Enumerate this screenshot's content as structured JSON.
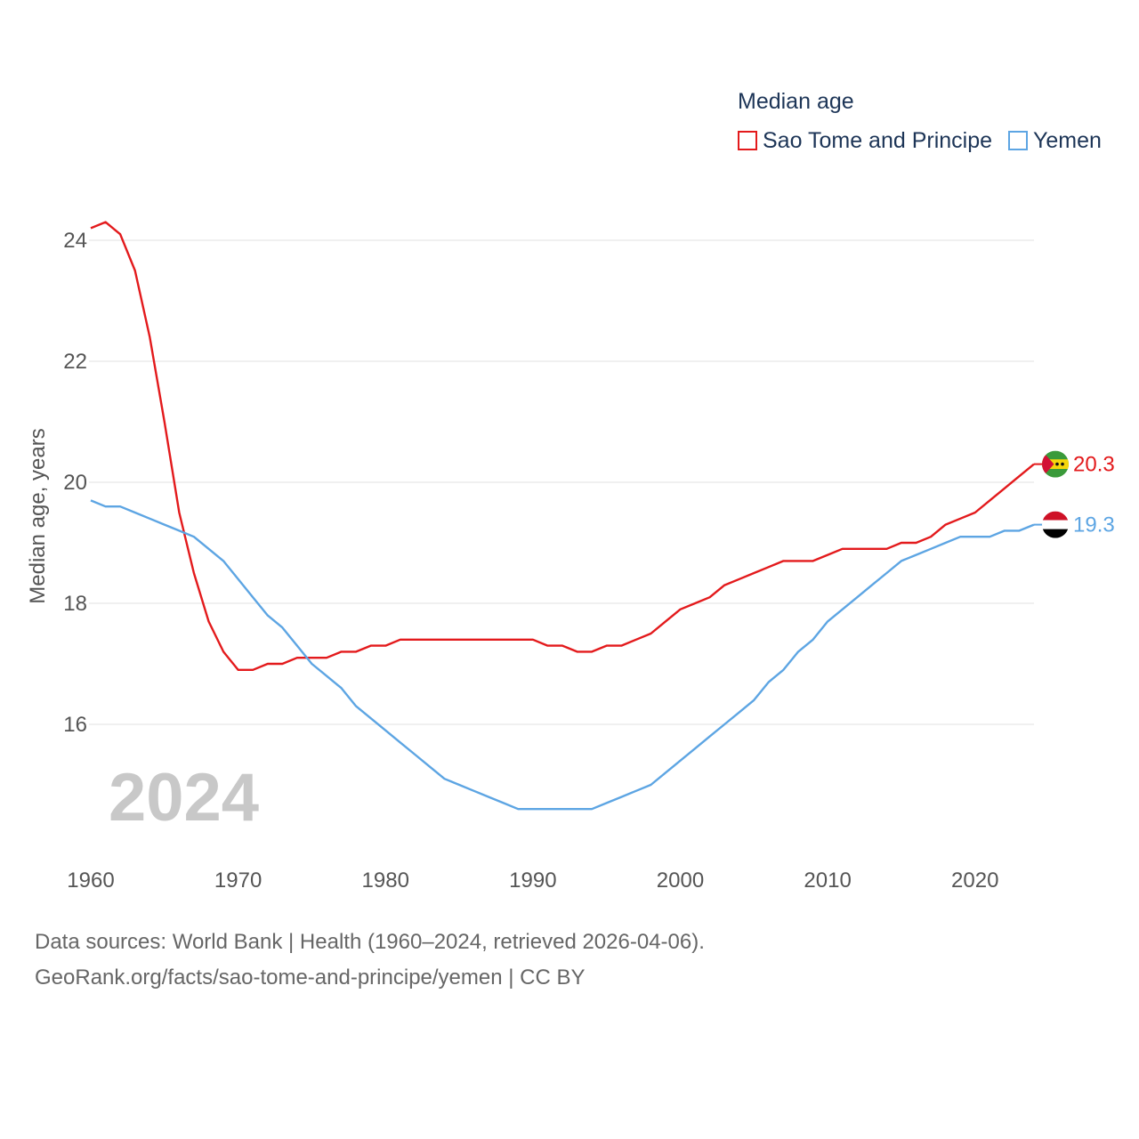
{
  "legend": {
    "title": "Median age",
    "items": [
      {
        "name": "Sao Tome and Principe",
        "color": "#e31a1c"
      },
      {
        "name": "Yemen",
        "color": "#5da5e3"
      }
    ]
  },
  "footer": {
    "line1": "Data sources: World Bank | Health (1960–2024, retrieved 2026-04-06).",
    "line2": "GeoRank.org/facts/sao-tome-and-principe/yemen | CC BY"
  },
  "chart_data": {
    "type": "line",
    "title": "Median age",
    "xlabel": "",
    "ylabel": "Median age, years",
    "year_label": "2024",
    "xlim": [
      1960,
      2024
    ],
    "ylim": [
      14,
      25
    ],
    "x_ticks": [
      1960,
      1970,
      1980,
      1990,
      2000,
      2010,
      2020
    ],
    "y_ticks": [
      16,
      18,
      20,
      22,
      24
    ],
    "grid": true,
    "legend_position": "top-right",
    "x": [
      1960,
      1961,
      1962,
      1963,
      1964,
      1965,
      1966,
      1967,
      1968,
      1969,
      1970,
      1971,
      1972,
      1973,
      1974,
      1975,
      1976,
      1977,
      1978,
      1979,
      1980,
      1981,
      1982,
      1983,
      1984,
      1985,
      1986,
      1987,
      1988,
      1989,
      1990,
      1991,
      1992,
      1993,
      1994,
      1995,
      1996,
      1997,
      1998,
      1999,
      2000,
      2001,
      2002,
      2003,
      2004,
      2005,
      2006,
      2007,
      2008,
      2009,
      2010,
      2011,
      2012,
      2013,
      2014,
      2015,
      2016,
      2017,
      2018,
      2019,
      2020,
      2021,
      2022,
      2023,
      2024
    ],
    "series": [
      {
        "name": "Sao Tome and Principe",
        "color": "#e31a1c",
        "end_label": "20.3",
        "values": [
          24.2,
          24.3,
          24.1,
          23.5,
          22.4,
          21.0,
          19.5,
          18.5,
          17.7,
          17.2,
          16.9,
          16.9,
          17.0,
          17.0,
          17.1,
          17.1,
          17.1,
          17.2,
          17.2,
          17.3,
          17.3,
          17.4,
          17.4,
          17.4,
          17.4,
          17.4,
          17.4,
          17.4,
          17.4,
          17.4,
          17.4,
          17.3,
          17.3,
          17.2,
          17.2,
          17.3,
          17.3,
          17.4,
          17.5,
          17.7,
          17.9,
          18.0,
          18.1,
          18.3,
          18.4,
          18.5,
          18.6,
          18.7,
          18.7,
          18.7,
          18.8,
          18.9,
          18.9,
          18.9,
          18.9,
          19.0,
          19.0,
          19.1,
          19.3,
          19.4,
          19.5,
          19.7,
          19.9,
          20.1,
          20.3
        ]
      },
      {
        "name": "Yemen",
        "color": "#5da5e3",
        "end_label": "19.3",
        "values": [
          19.7,
          19.6,
          19.6,
          19.5,
          19.4,
          19.3,
          19.2,
          19.1,
          18.9,
          18.7,
          18.4,
          18.1,
          17.8,
          17.6,
          17.3,
          17.0,
          16.8,
          16.6,
          16.3,
          16.1,
          15.9,
          15.7,
          15.5,
          15.3,
          15.1,
          15.0,
          14.9,
          14.8,
          14.7,
          14.6,
          14.6,
          14.6,
          14.6,
          14.6,
          14.6,
          14.7,
          14.8,
          14.9,
          15.0,
          15.2,
          15.4,
          15.6,
          15.8,
          16.0,
          16.2,
          16.4,
          16.7,
          16.9,
          17.2,
          17.4,
          17.7,
          17.9,
          18.1,
          18.3,
          18.5,
          18.7,
          18.8,
          18.9,
          19.0,
          19.1,
          19.1,
          19.1,
          19.2,
          19.2,
          19.3
        ]
      }
    ]
  }
}
